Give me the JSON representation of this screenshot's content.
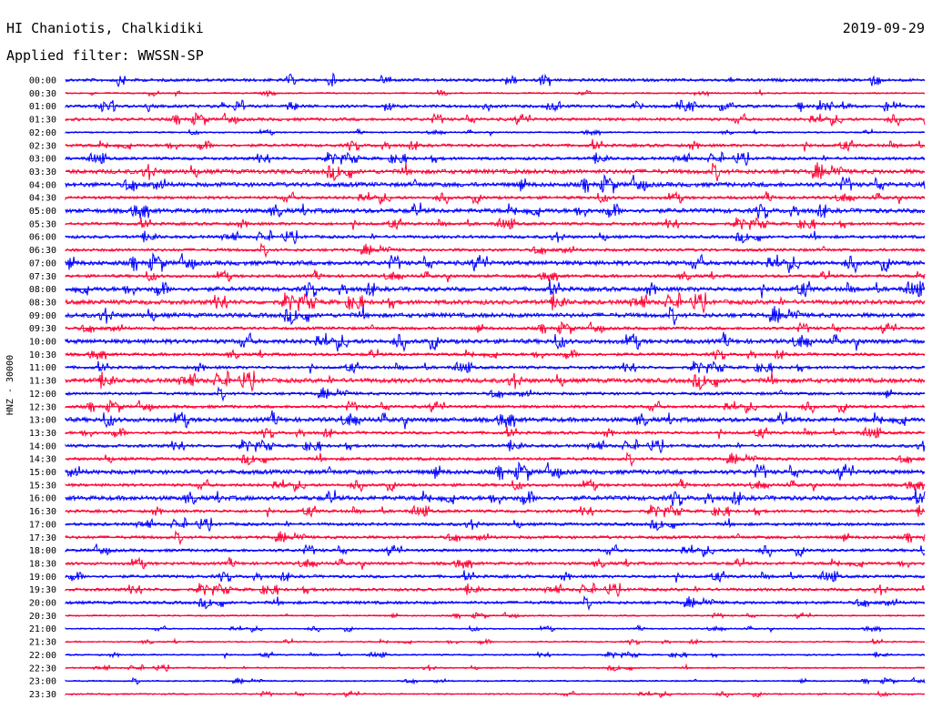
{
  "header": {
    "station": "HI Chaniotis, Chalkidiki",
    "date": "2019-09-29",
    "filter": "Applied filter: WWSSN-SP"
  },
  "chart_data": {
    "type": "line",
    "ylabel": "HNZ - 30000",
    "colors": [
      "#0000ff",
      "#ff0033"
    ],
    "rows": [
      "00:00",
      "00:30",
      "01:00",
      "01:30",
      "02:00",
      "02:30",
      "03:00",
      "03:30",
      "04:00",
      "04:30",
      "05:00",
      "05:30",
      "06:00",
      "06:30",
      "07:00",
      "07:30",
      "08:00",
      "08:30",
      "09:00",
      "09:30",
      "10:00",
      "10:30",
      "11:00",
      "11:30",
      "12:00",
      "12:30",
      "13:00",
      "13:30",
      "14:00",
      "14:30",
      "15:00",
      "15:30",
      "16:00",
      "16:30",
      "17:00",
      "17:30",
      "18:00",
      "18:30",
      "19:00",
      "19:30",
      "20:00",
      "20:30",
      "21:00",
      "21:30",
      "22:00",
      "22:30",
      "23:00",
      "23:30"
    ],
    "noise_level": [
      2,
      1,
      2,
      2,
      1,
      2,
      2,
      3,
      3,
      2,
      3,
      2,
      2,
      2,
      3,
      2,
      3,
      3,
      3,
      2,
      3,
      2,
      2,
      3,
      2,
      2,
      3,
      2,
      2,
      2,
      3,
      2,
      3,
      2,
      2,
      2,
      2,
      2,
      2,
      2,
      2,
      1,
      1,
      1,
      1,
      1,
      1,
      1
    ]
  }
}
